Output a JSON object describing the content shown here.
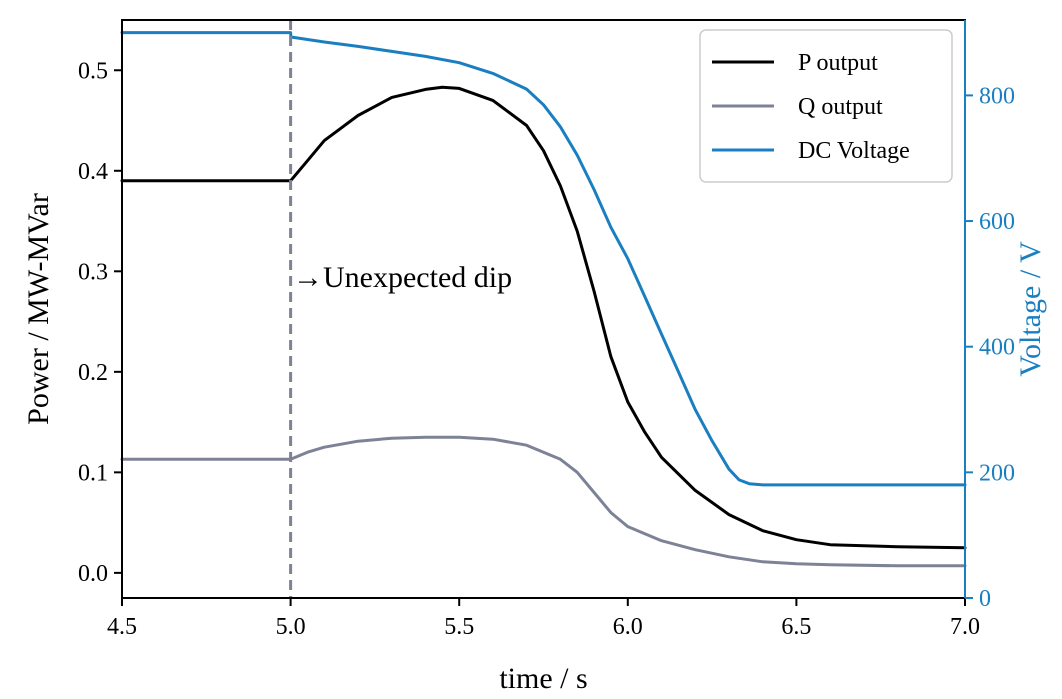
{
  "chart_data": {
    "type": "line",
    "xlabel": "time / s",
    "ylabel_left": "Power / MW-MVar",
    "ylabel_right": "Voltage / V",
    "xlim": [
      4.5,
      7.0
    ],
    "ylim_left": [
      -0.025,
      0.55
    ],
    "ylim_right": [
      0,
      920
    ],
    "x_ticks": [
      "4.5",
      "5.0",
      "5.5",
      "6.0",
      "6.5",
      "7.0"
    ],
    "y_left_ticks": [
      "0.0",
      "0.1",
      "0.2",
      "0.3",
      "0.4",
      "0.5"
    ],
    "y_right_ticks": [
      "0",
      "200",
      "400",
      "600",
      "800"
    ],
    "grid": false,
    "legend_position": "top-right",
    "colors": {
      "p": "#000000",
      "q": "#7d8296",
      "v": "#1a7fc1",
      "vline": "#7d8296"
    },
    "series": [
      {
        "name": "P output",
        "axis": "left",
        "color": "#000000",
        "x": [
          4.5,
          5.0,
          5.05,
          5.1,
          5.2,
          5.3,
          5.4,
          5.45,
          5.5,
          5.6,
          5.7,
          5.75,
          5.8,
          5.85,
          5.9,
          5.95,
          6.0,
          6.05,
          6.1,
          6.2,
          6.3,
          6.4,
          6.5,
          6.6,
          6.8,
          7.0
        ],
        "y": [
          0.39,
          0.39,
          0.41,
          0.43,
          0.455,
          0.473,
          0.481,
          0.483,
          0.482,
          0.47,
          0.445,
          0.42,
          0.385,
          0.34,
          0.28,
          0.215,
          0.17,
          0.14,
          0.115,
          0.082,
          0.058,
          0.042,
          0.033,
          0.028,
          0.026,
          0.025
        ]
      },
      {
        "name": "Q output",
        "axis": "left",
        "color": "#7d8296",
        "x": [
          4.5,
          5.0,
          5.05,
          5.1,
          5.2,
          5.3,
          5.4,
          5.5,
          5.6,
          5.7,
          5.8,
          5.85,
          5.9,
          5.95,
          6.0,
          6.1,
          6.2,
          6.3,
          6.4,
          6.5,
          6.6,
          6.8,
          7.0
        ],
        "y": [
          0.113,
          0.113,
          0.12,
          0.125,
          0.131,
          0.134,
          0.135,
          0.135,
          0.133,
          0.127,
          0.113,
          0.1,
          0.08,
          0.06,
          0.046,
          0.032,
          0.023,
          0.016,
          0.011,
          0.009,
          0.008,
          0.007,
          0.007
        ]
      },
      {
        "name": "DC Voltage",
        "axis": "right",
        "color": "#1a7fc1",
        "x": [
          4.5,
          5.0,
          5.001,
          5.1,
          5.2,
          5.3,
          5.4,
          5.5,
          5.6,
          5.7,
          5.75,
          5.8,
          5.85,
          5.9,
          5.95,
          6.0,
          6.05,
          6.1,
          6.15,
          6.2,
          6.25,
          6.3,
          6.33,
          6.36,
          6.4,
          6.5,
          6.6,
          7.0
        ],
        "y": [
          900,
          900,
          893,
          885,
          878,
          870,
          862,
          852,
          835,
          810,
          785,
          750,
          705,
          650,
          590,
          540,
          480,
          420,
          360,
          300,
          250,
          205,
          188,
          182,
          180,
          180,
          180,
          180
        ]
      }
    ],
    "vertical_line_x": 5.0,
    "annotation": "→Unexpected dip"
  }
}
